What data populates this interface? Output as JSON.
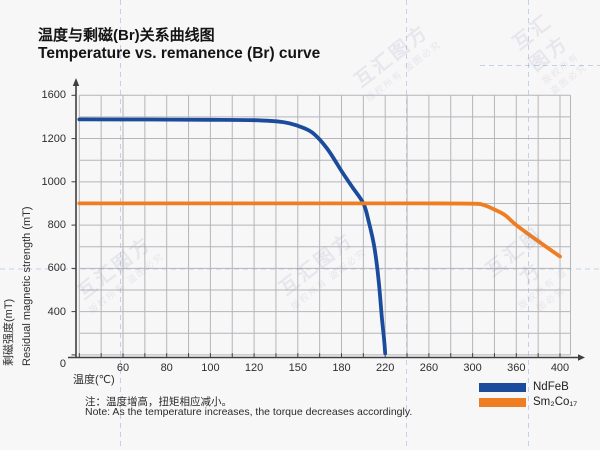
{
  "header": {
    "title_zh": "温度与剩磁(Br)关系曲线图",
    "title_en": "Temperature vs. remanence (Br) curve"
  },
  "chart_data": {
    "type": "line",
    "title": "Temperature vs. remanence (Br) curve",
    "x_axis": {
      "label_zh": "温度(℃)",
      "tick_labels": [
        60,
        80,
        100,
        120,
        150,
        180,
        220,
        260,
        300,
        360,
        400
      ],
      "origin_label": "0"
    },
    "y_axis": {
      "label_zh": "剩磁强度(mT)",
      "label_en": "Residual magnetic strength (mT)",
      "tick_labels": [
        1600,
        1200,
        1000,
        800,
        600,
        400
      ],
      "unit": "mT"
    },
    "grid": true,
    "legend_position": "bottom-right",
    "series": [
      {
        "name": "NdFeB",
        "color": "#1b4c9c",
        "points": [
          [
            40,
            1377
          ],
          [
            70,
            1376
          ],
          [
            100,
            1374
          ],
          [
            120,
            1370
          ],
          [
            140,
            1352
          ],
          [
            150,
            1318
          ],
          [
            160,
            1255
          ],
          [
            170,
            1155
          ],
          [
            180,
            1050
          ],
          [
            190,
            975
          ],
          [
            200,
            900
          ],
          [
            205,
            815
          ],
          [
            210,
            700
          ],
          [
            214,
            545
          ],
          [
            217,
            340
          ],
          [
            219,
            140
          ],
          [
            220,
            15
          ]
        ]
      },
      {
        "name": "Sm₂Co₁₇",
        "color": "#ef7e22",
        "points": [
          [
            40,
            900
          ],
          [
            150,
            900
          ],
          [
            250,
            900
          ],
          [
            300,
            899
          ],
          [
            315,
            893
          ],
          [
            330,
            872
          ],
          [
            345,
            845
          ],
          [
            360,
            800
          ],
          [
            380,
            726
          ],
          [
            400,
            655
          ]
        ]
      }
    ]
  },
  "notes": {
    "zh": "注：温度增高，扭矩相应减小。",
    "en": "Note: As the temperature increases, the torque decreases accordingly."
  },
  "watermark": {
    "main": "互汇图方",
    "sub": "版权所有 盗图必究"
  }
}
